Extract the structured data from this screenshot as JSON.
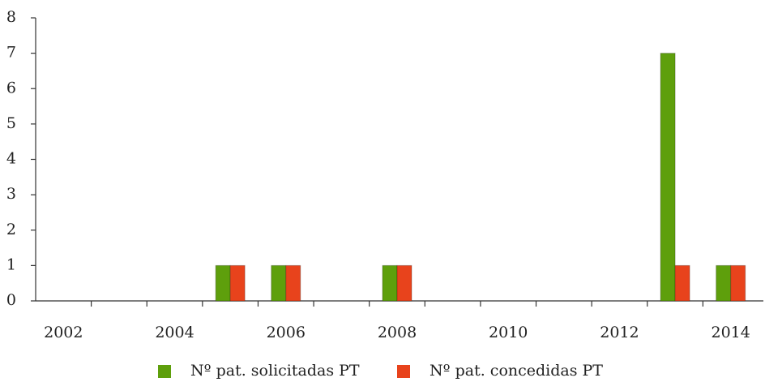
{
  "chart_data": {
    "type": "bar",
    "categories": [
      "2002",
      null,
      "2004",
      null,
      "2006",
      null,
      "2008",
      null,
      "2010",
      null,
      "2012",
      null,
      "2014"
    ],
    "series": [
      {
        "name": "Nº pat. solicitadas PT",
        "color": "#5e9f0c",
        "values": [
          0,
          0,
          0,
          1,
          1,
          0,
          1,
          0,
          0,
          0,
          0,
          7,
          1
        ]
      },
      {
        "name": "Nº pat. concedidas PT",
        "color": "#e8431c",
        "values": [
          0,
          0,
          0,
          1,
          1,
          0,
          1,
          0,
          0,
          0,
          0,
          1,
          1
        ]
      }
    ],
    "ylim": [
      0,
      8
    ],
    "yticks": [
      0,
      1,
      2,
      3,
      4,
      5,
      6,
      7,
      8
    ],
    "grid": false,
    "legend": "bottom"
  }
}
